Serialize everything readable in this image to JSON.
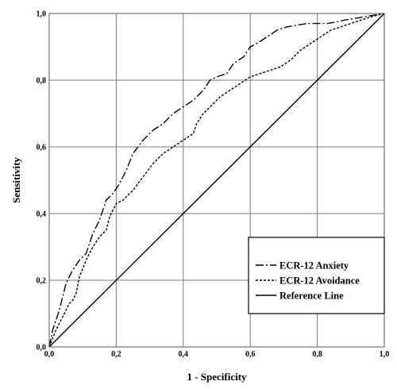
{
  "chart_data": {
    "type": "line",
    "title": "",
    "xlabel": "1 - Specificity",
    "ylabel": "Sensitivity",
    "xlim": [
      0,
      1
    ],
    "ylim": [
      0,
      1
    ],
    "grid": true,
    "legend_position": "bottom-right",
    "x_ticks": [
      0,
      0.2,
      0.4,
      0.6,
      0.8,
      1.0
    ],
    "y_ticks": [
      0,
      0.2,
      0.4,
      0.6,
      0.8,
      1.0
    ],
    "x_tick_labels": [
      "0,0",
      "0,2",
      "0,4",
      "0,6",
      "0,8",
      "1,0"
    ],
    "y_tick_labels": [
      "0,0",
      "0,2",
      "0,4",
      "0,6",
      "0,8",
      "1,0"
    ],
    "series": [
      {
        "name": "ECR-12 Anxiety",
        "style": "dash-dot",
        "color": "#000000",
        "x": [
          0,
          0.01,
          0.03,
          0.05,
          0.07,
          0.09,
          0.11,
          0.13,
          0.15,
          0.17,
          0.19,
          0.21,
          0.23,
          0.25,
          0.28,
          0.31,
          0.34,
          0.37,
          0.4,
          0.43,
          0.46,
          0.48,
          0.5,
          0.53,
          0.55,
          0.58,
          0.6,
          0.62,
          0.65,
          0.68,
          0.71,
          0.74,
          0.77,
          0.8,
          0.83,
          0.86,
          0.88,
          0.91,
          0.94,
          0.97,
          1.0
        ],
        "y": [
          0,
          0.05,
          0.11,
          0.19,
          0.23,
          0.26,
          0.28,
          0.34,
          0.38,
          0.44,
          0.46,
          0.49,
          0.53,
          0.58,
          0.62,
          0.65,
          0.67,
          0.7,
          0.72,
          0.74,
          0.77,
          0.8,
          0.81,
          0.82,
          0.85,
          0.87,
          0.9,
          0.91,
          0.93,
          0.95,
          0.96,
          0.965,
          0.97,
          0.97,
          0.97,
          0.975,
          0.98,
          0.985,
          0.99,
          0.995,
          1.0
        ]
      },
      {
        "name": "ECR-12 Avoidance",
        "style": "dotted",
        "color": "#000000",
        "x": [
          0,
          0.02,
          0.04,
          0.06,
          0.07,
          0.08,
          0.09,
          0.11,
          0.13,
          0.15,
          0.17,
          0.18,
          0.2,
          0.22,
          0.25,
          0.28,
          0.31,
          0.34,
          0.37,
          0.4,
          0.43,
          0.44,
          0.46,
          0.48,
          0.51,
          0.54,
          0.57,
          0.6,
          0.63,
          0.66,
          0.69,
          0.72,
          0.75,
          0.78,
          0.81,
          0.84,
          0.87,
          0.9,
          0.93,
          0.96,
          1.0
        ],
        "y": [
          0,
          0.05,
          0.09,
          0.13,
          0.14,
          0.16,
          0.21,
          0.26,
          0.3,
          0.33,
          0.35,
          0.39,
          0.43,
          0.44,
          0.47,
          0.51,
          0.55,
          0.58,
          0.6,
          0.62,
          0.64,
          0.67,
          0.7,
          0.72,
          0.75,
          0.77,
          0.79,
          0.81,
          0.82,
          0.83,
          0.84,
          0.86,
          0.89,
          0.91,
          0.93,
          0.95,
          0.96,
          0.97,
          0.98,
          0.99,
          1.0
        ]
      },
      {
        "name": "Reference Line",
        "style": "solid",
        "color": "#000000",
        "x": [
          0,
          1.0
        ],
        "y": [
          0,
          1.0
        ]
      }
    ]
  }
}
